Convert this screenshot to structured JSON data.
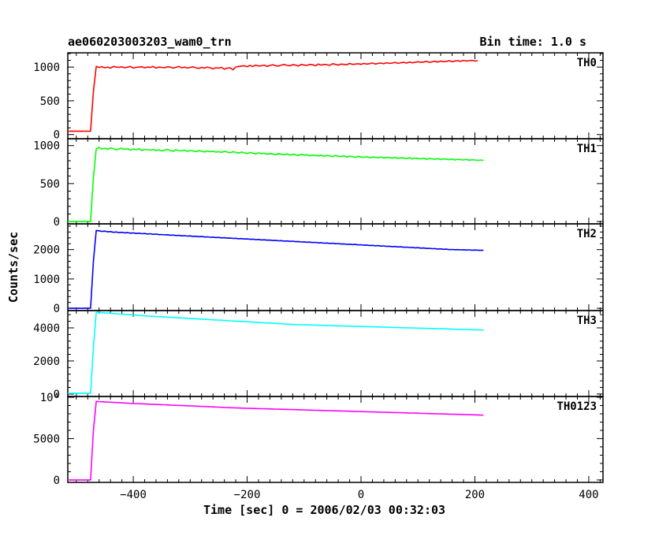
{
  "plot": {
    "title": "ae060203003203_wam0_trn",
    "bin_time_label": "Bin time: 1.0 s",
    "xlabel": "Time [sec] 0 = 2006/02/03 00:32:03",
    "ylabel": "Counts/sec"
  },
  "chart_data": {
    "type": "line",
    "shared_x": {
      "label": "Time [sec] 0 = 2006/02/03 00:32:03",
      "range": [
        -515,
        425
      ],
      "ticks": [
        -400,
        -200,
        0,
        200,
        400
      ],
      "tick_labels": [
        "−400",
        "−200",
        "0",
        "200",
        "400"
      ]
    },
    "bin_time_s": 1.0,
    "start": -515,
    "step": 5,
    "panels": [
      {
        "name": "TH0",
        "color": "#ff0000",
        "ylim": [
          -50,
          1200
        ],
        "yticks": [
          0,
          500,
          1000
        ],
        "ytick_labels": [
          "0",
          "500",
          "1000"
        ],
        "values": [
          50,
          50,
          50,
          50,
          50,
          50,
          50,
          50,
          50,
          640,
          1010,
          995,
          1005,
          990,
          1000,
          985,
          1010,
          1000,
          995,
          1005,
          990,
          1000,
          1010,
          985,
          995,
          1000,
          1005,
          990,
          1000,
          995,
          1010,
          985,
          1000,
          995,
          990,
          1005,
          1000,
          985,
          995,
          1010,
          990,
          1000,
          985,
          995,
          1005,
          990,
          980,
          995,
          985,
          1000,
          990,
          975,
          990,
          985,
          995,
          970,
          985,
          990,
          960,
          1000,
          1010,
          1015,
          1020,
          1005,
          1025,
          1010,
          1030,
          1015,
          1020,
          1030,
          1010,
          1025,
          1035,
          1020,
          1015,
          1030,
          1040,
          1025,
          1020,
          1035,
          1030,
          1015,
          1040,
          1030,
          1025,
          1040,
          1035,
          1020,
          1045,
          1030,
          1040,
          1035,
          1025,
          1050,
          1040,
          1030,
          1045,
          1040,
          1035,
          1055,
          1040,
          1045,
          1050,
          1040,
          1055,
          1045,
          1050,
          1060,
          1045,
          1055,
          1060,
          1050,
          1065,
          1055,
          1060,
          1070,
          1055,
          1065,
          1070,
          1060,
          1075,
          1065,
          1070,
          1080,
          1070,
          1075,
          1085,
          1070,
          1080,
          1085,
          1075,
          1090,
          1080,
          1085,
          1095,
          1080,
          1090,
          1095,
          1085,
          1100,
          1090,
          1095,
          1100,
          1090,
          1095
        ]
      },
      {
        "name": "TH1",
        "color": "#00ff00",
        "ylim": [
          -20,
          1080
        ],
        "yticks": [
          0,
          500,
          1000
        ],
        "ytick_labels": [
          "0",
          "500",
          "1000"
        ],
        "values": [
          0,
          0,
          0,
          0,
          0,
          0,
          0,
          0,
          0,
          580,
          960,
          975,
          955,
          965,
          950,
          970,
          960,
          945,
          955,
          965,
          950,
          960,
          940,
          955,
          945,
          960,
          935,
          950,
          945,
          940,
          950,
          935,
          945,
          930,
          940,
          950,
          935,
          925,
          945,
          935,
          930,
          940,
          925,
          935,
          930,
          920,
          935,
          925,
          915,
          930,
          920,
          925,
          915,
          920,
          910,
          925,
          915,
          905,
          920,
          910,
          900,
          915,
          905,
          895,
          910,
          900,
          890,
          905,
          895,
          900,
          885,
          895,
          890,
          880,
          895,
          885,
          880,
          890,
          875,
          885,
          880,
          870,
          885,
          875,
          880,
          865,
          875,
          870,
          865,
          875,
          860,
          870,
          865,
          855,
          870,
          860,
          855,
          865,
          850,
          860,
          855,
          845,
          860,
          850,
          845,
          855,
          840,
          850,
          845,
          840,
          850,
          835,
          845,
          840,
          835,
          845,
          830,
          840,
          835,
          830,
          840,
          825,
          835,
          830,
          825,
          835,
          820,
          830,
          825,
          820,
          830,
          815,
          825,
          820,
          815,
          825,
          810,
          820,
          815,
          810,
          820,
          805,
          815,
          810,
          805,
          810,
          805
        ]
      },
      {
        "name": "TH2",
        "color": "#0000ff",
        "ylim": [
          -50,
          2850
        ],
        "yticks": [
          0,
          1000,
          2000
        ],
        "ytick_labels": [
          "0",
          "1000",
          "2000"
        ],
        "values": [
          0,
          0,
          0,
          0,
          0,
          0,
          0,
          0,
          0,
          1600,
          2650,
          2640,
          2620,
          2630,
          2605,
          2615,
          2590,
          2600,
          2580,
          2590,
          2570,
          2580,
          2560,
          2570,
          2550,
          2560,
          2540,
          2550,
          2530,
          2540,
          2520,
          2530,
          2510,
          2515,
          2500,
          2505,
          2490,
          2495,
          2480,
          2485,
          2470,
          2475,
          2460,
          2465,
          2450,
          2455,
          2440,
          2445,
          2430,
          2435,
          2420,
          2425,
          2410,
          2415,
          2400,
          2405,
          2390,
          2395,
          2380,
          2385,
          2370,
          2375,
          2360,
          2365,
          2350,
          2355,
          2340,
          2345,
          2330,
          2335,
          2320,
          2325,
          2310,
          2315,
          2300,
          2305,
          2290,
          2295,
          2280,
          2285,
          2270,
          2275,
          2260,
          2265,
          2250,
          2255,
          2240,
          2245,
          2230,
          2235,
          2220,
          2225,
          2210,
          2215,
          2200,
          2205,
          2190,
          2195,
          2180,
          2185,
          2170,
          2175,
          2160,
          2165,
          2150,
          2155,
          2140,
          2145,
          2130,
          2135,
          2120,
          2125,
          2110,
          2115,
          2100,
          2105,
          2090,
          2095,
          2080,
          2085,
          2070,
          2075,
          2060,
          2065,
          2050,
          2055,
          2040,
          2045,
          2030,
          2035,
          2020,
          2025,
          2010,
          2015,
          2000,
          2005,
          1995,
          2000,
          1990,
          1995,
          1985,
          1990,
          1980,
          1985,
          1980,
          1975,
          1980
        ]
      },
      {
        "name": "TH3",
        "color": "#00ffff",
        "ylim": [
          -100,
          5000
        ],
        "yticks": [
          0,
          2000,
          4000
        ],
        "ytick_labels": [
          "0",
          "2000",
          "4000"
        ],
        "values": [
          50,
          50,
          50,
          50,
          50,
          50,
          50,
          50,
          50,
          2800,
          4950,
          4940,
          4920,
          4910,
          4895,
          4885,
          4870,
          4860,
          4845,
          4835,
          4820,
          4810,
          4795,
          4785,
          4770,
          4760,
          4745,
          4735,
          4720,
          4710,
          4700,
          4690,
          4680,
          4670,
          4660,
          4650,
          4640,
          4630,
          4620,
          4610,
          4600,
          4590,
          4580,
          4570,
          4560,
          4550,
          4540,
          4530,
          4520,
          4510,
          4500,
          4490,
          4480,
          4470,
          4460,
          4450,
          4440,
          4430,
          4420,
          4410,
          4400,
          4390,
          4380,
          4370,
          4360,
          4350,
          4340,
          4330,
          4320,
          4310,
          4300,
          4290,
          4280,
          4270,
          4260,
          4250,
          4240,
          4230,
          4220,
          4210,
          4200,
          4195,
          4190,
          4185,
          4180,
          4175,
          4170,
          4165,
          4160,
          4155,
          4150,
          4145,
          4140,
          4135,
          4130,
          4125,
          4120,
          4115,
          4110,
          4105,
          4100,
          4095,
          4090,
          4085,
          4080,
          4075,
          4070,
          4065,
          4060,
          4055,
          4050,
          4045,
          4040,
          4035,
          4030,
          4025,
          4020,
          4015,
          4010,
          4005,
          4000,
          3995,
          3990,
          3985,
          3980,
          3975,
          3970,
          3965,
          3960,
          3955,
          3950,
          3945,
          3940,
          3935,
          3930,
          3925,
          3920,
          3915,
          3910,
          3905,
          3900,
          3895,
          3890,
          3885,
          3880,
          3875,
          3870
        ]
      },
      {
        "name": "TH0123",
        "color": "#ff00ff",
        "ylim": [
          -200,
          10000
        ],
        "yticks": [
          0,
          5000,
          10000
        ],
        "ytick_labels": [
          "0",
          "5000",
          "10⁴"
        ],
        "values": [
          0,
          0,
          0,
          0,
          0,
          0,
          0,
          0,
          0,
          6000,
          9500,
          9480,
          9460,
          9440,
          9420,
          9400,
          9380,
          9360,
          9340,
          9320,
          9300,
          9285,
          9270,
          9255,
          9240,
          9225,
          9210,
          9195,
          9180,
          9165,
          9150,
          9135,
          9120,
          9105,
          9090,
          9075,
          9060,
          9045,
          9030,
          9015,
          9000,
          8985,
          8970,
          8955,
          8940,
          8925,
          8910,
          8895,
          8880,
          8865,
          8850,
          8835,
          8820,
          8805,
          8790,
          8775,
          8760,
          8745,
          8730,
          8715,
          8700,
          8690,
          8680,
          8670,
          8660,
          8650,
          8640,
          8630,
          8620,
          8610,
          8600,
          8590,
          8580,
          8570,
          8560,
          8550,
          8540,
          8530,
          8520,
          8510,
          8500,
          8490,
          8480,
          8470,
          8460,
          8450,
          8440,
          8430,
          8420,
          8410,
          8400,
          8390,
          8380,
          8370,
          8360,
          8350,
          8340,
          8330,
          8320,
          8310,
          8300,
          8290,
          8280,
          8270,
          8260,
          8250,
          8240,
          8230,
          8220,
          8210,
          8200,
          8190,
          8180,
          8170,
          8160,
          8150,
          8140,
          8130,
          8120,
          8110,
          8100,
          8090,
          8080,
          8070,
          8060,
          8050,
          8040,
          8030,
          8020,
          8010,
          8000,
          7990,
          7980,
          7970,
          7960,
          7950,
          7940,
          7930,
          7920,
          7910,
          7900,
          7890,
          7880,
          7870,
          7860,
          7850,
          7840
        ]
      }
    ]
  }
}
